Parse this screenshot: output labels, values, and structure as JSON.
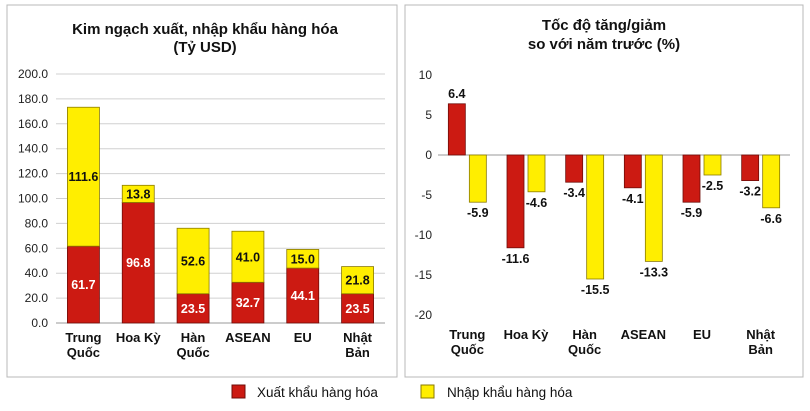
{
  "colors": {
    "export": "#cc1a12",
    "import": "#ffee00",
    "import_stroke": "#8a7a00",
    "export_stroke": "#6f0c08",
    "grid": "#d0d0d0",
    "border": "#b8b8b8"
  },
  "legend": [
    {
      "label": "Xuất khẩu hàng hóa",
      "series": "export"
    },
    {
      "label": "Nhập khẩu hàng hóa",
      "series": "import"
    }
  ],
  "chart_data": [
    {
      "type": "bar",
      "stacked": true,
      "title_lines": [
        "Kim ngạch xuất, nhập khẩu hàng hóa",
        "(Tỷ USD)"
      ],
      "categories": [
        [
          "Trung",
          "Quốc"
        ],
        [
          "Hoa Kỳ"
        ],
        [
          "Hàn",
          "Quốc"
        ],
        [
          "ASEAN"
        ],
        [
          "EU"
        ],
        [
          "Nhật",
          "Bản"
        ]
      ],
      "series": [
        {
          "name": "Xuất khẩu hàng hóa",
          "key": "export",
          "values": [
            61.7,
            96.8,
            23.5,
            32.7,
            44.1,
            23.5
          ],
          "labels": [
            "61.7",
            "96.8",
            "23.5",
            "32.7",
            "44.1",
            "23.5"
          ]
        },
        {
          "name": "Nhập khẩu hàng hóa",
          "key": "import",
          "values": [
            111.6,
            13.8,
            52.6,
            41.0,
            15.0,
            21.8
          ],
          "labels": [
            "111.6",
            "13.8",
            "52.6",
            "41.0",
            "15.0",
            "21.8"
          ]
        }
      ],
      "ylim": [
        0,
        200
      ],
      "yticks": [
        0,
        20,
        40,
        60,
        80,
        100,
        120,
        140,
        160,
        180,
        200
      ],
      "ytick_labels": [
        "0.0",
        "20.0",
        "40.0",
        "60.0",
        "80.0",
        "100.0",
        "120.0",
        "140.0",
        "160.0",
        "180.0",
        "200.0"
      ],
      "grid": true
    },
    {
      "type": "bar",
      "stacked": false,
      "title_lines": [
        "Tốc độ tăng/giảm",
        "so với năm trước (%)"
      ],
      "categories": [
        [
          "Trung",
          "Quốc"
        ],
        [
          "Hoa Kỳ"
        ],
        [
          "Hàn",
          "Quốc"
        ],
        [
          "ASEAN"
        ],
        [
          "EU"
        ],
        [
          "Nhật",
          "Bản"
        ]
      ],
      "series": [
        {
          "name": "Xuất khẩu hàng hóa",
          "key": "export",
          "values": [
            6.4,
            -11.6,
            -3.4,
            -4.1,
            -5.9,
            -3.2
          ],
          "labels": [
            "6.4",
            "-11.6",
            "-3.4",
            "-4.1",
            "-5.9",
            "-3.2"
          ]
        },
        {
          "name": "Nhập khẩu hàng hóa",
          "key": "import",
          "values": [
            -5.9,
            -4.6,
            -15.5,
            -13.3,
            -2.5,
            -6.6
          ],
          "labels": [
            "-5.9",
            "-4.6",
            "-15.5",
            "-13.3",
            "-2.5",
            "-6.6"
          ]
        }
      ],
      "ylim": [
        -20,
        10
      ],
      "yticks": [
        -20,
        -15,
        -10,
        -5,
        0,
        5,
        10
      ],
      "ytick_labels": [
        "-20",
        "-15",
        "-10",
        "-5",
        "0",
        "5",
        "10"
      ],
      "grid": false
    }
  ]
}
